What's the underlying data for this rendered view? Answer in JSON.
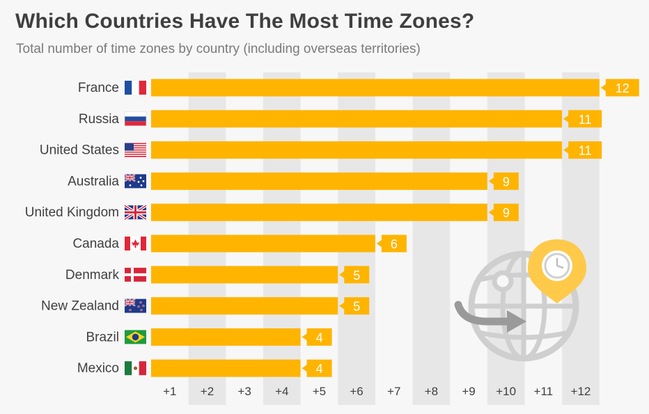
{
  "title": "Which Countries Have The Most Time Zones?",
  "subtitle": "Total number of time zones by country (including overseas territories)",
  "colors": {
    "bar": "#ffb400",
    "stripe": "#e7e7e7",
    "text": "#3f3f3f",
    "axis_text": "#3f3f3f",
    "label_text": "#ffffff",
    "icon_gray": "#cfcfcf",
    "pin": "#ffc94a"
  },
  "chart_data": {
    "type": "bar",
    "orientation": "horizontal",
    "categories": [
      "France",
      "Russia",
      "United States",
      "Australia",
      "United Kingdom",
      "Canada",
      "Denmark",
      "New Zealand",
      "Brazil",
      "Mexico"
    ],
    "values": [
      12,
      11,
      11,
      9,
      9,
      6,
      5,
      5,
      4,
      4
    ],
    "flags": [
      "france-flag",
      "russia-flag",
      "united-states-flag",
      "australia-flag",
      "united-kingdom-flag",
      "canada-flag",
      "denmark-flag",
      "new-zealand-flag",
      "brazil-flag",
      "mexico-flag"
    ],
    "x_ticks": [
      "+1",
      "+2",
      "+3",
      "+4",
      "+5",
      "+6",
      "+7",
      "+8",
      "+9",
      "+10",
      "+11",
      "+12"
    ],
    "xlim": [
      0,
      12
    ],
    "data_labels": true,
    "grid": "alternating column stripes",
    "legend": "none"
  },
  "decoration": {
    "icon": "globe-with-location-pin-clock-icon"
  }
}
